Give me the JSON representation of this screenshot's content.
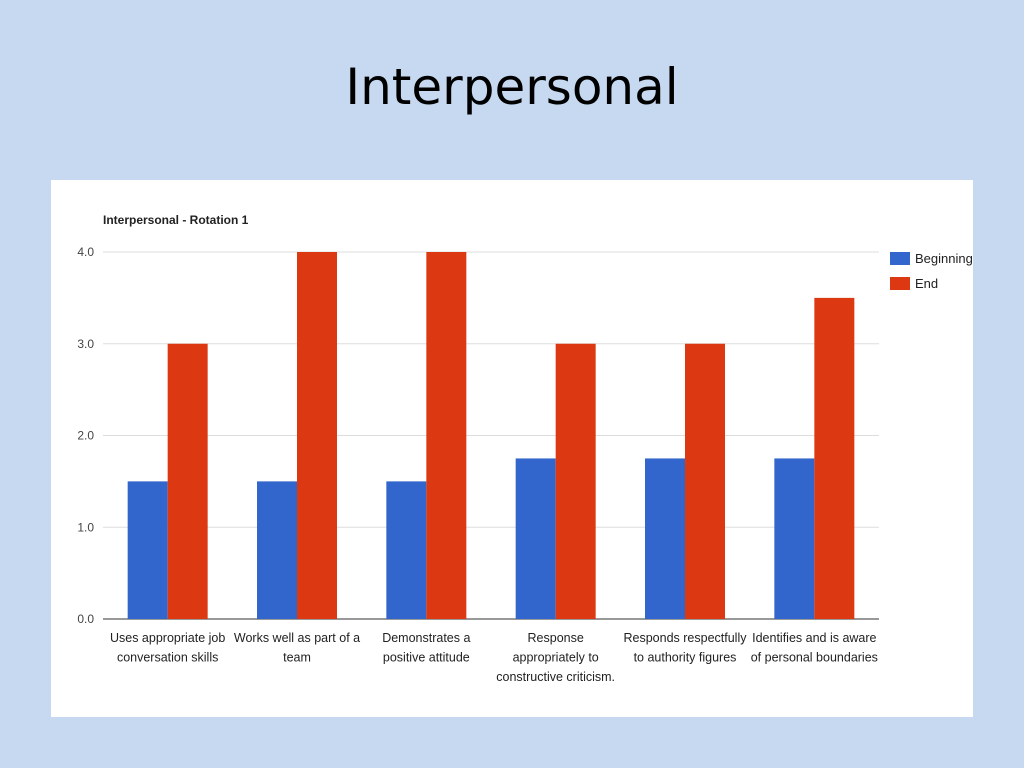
{
  "slide": {
    "title": "Interpersonal"
  },
  "colors": {
    "background": "#c6d9f0",
    "beginning": "#3366cc",
    "end": "#dc3912"
  },
  "chart_data": {
    "type": "bar",
    "title": "Interpersonal - Rotation 1",
    "xlabel": "",
    "ylabel": "",
    "ylim": [
      0,
      4
    ],
    "yticks": [
      "0.0",
      "1.0",
      "2.0",
      "3.0",
      "4.0"
    ],
    "grid": true,
    "legend_position": "right",
    "categories": [
      [
        "Uses appropriate job",
        "conversation skills"
      ],
      [
        "Works well as part of a",
        "team"
      ],
      [
        "Demonstrates a",
        "positive attitude"
      ],
      [
        "Response",
        "appropriately to",
        "constructive criticism."
      ],
      [
        "Responds respectfully",
        "to authority figures"
      ],
      [
        "Identifies and is aware",
        "of personal boundaries"
      ]
    ],
    "series": [
      {
        "name": "Beginning",
        "values": [
          1.5,
          1.5,
          1.5,
          1.75,
          1.75,
          1.75
        ]
      },
      {
        "name": "End",
        "values": [
          3,
          4,
          4,
          3,
          3,
          3.5
        ]
      }
    ]
  }
}
